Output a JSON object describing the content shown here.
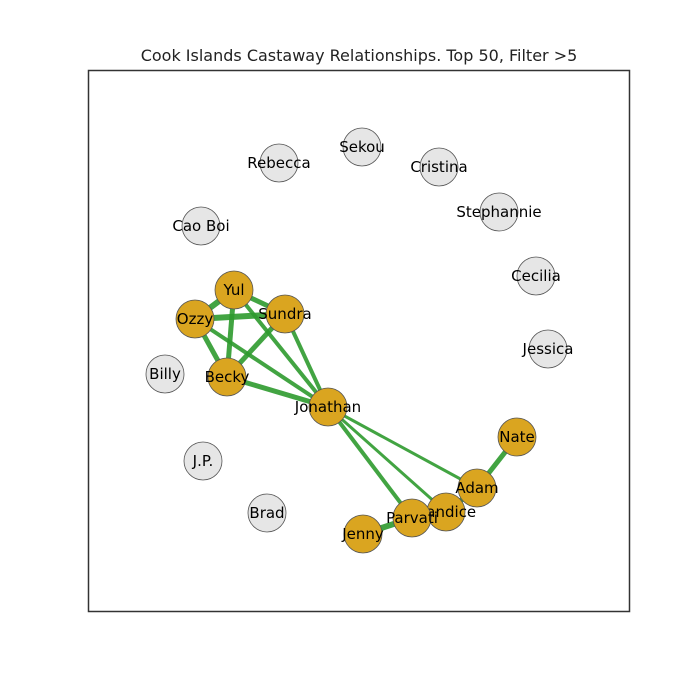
{
  "title": "Cook Islands Castaway Relationships. Top 50, Filter >5",
  "colors": {
    "connected_fill": "#daa520",
    "isolated_fill": "#e6e6e6",
    "edge": "#2e9a2e",
    "frame": "#333333"
  },
  "nodes": [
    {
      "id": "sekou",
      "label": "Sekou",
      "connected": false
    },
    {
      "id": "rebecca",
      "label": "Rebecca",
      "connected": false
    },
    {
      "id": "cristina",
      "label": "Cristina",
      "connected": false
    },
    {
      "id": "stephannie",
      "label": "Stephannie",
      "connected": false
    },
    {
      "id": "cao-boi",
      "label": "Cao Boi",
      "connected": false
    },
    {
      "id": "cecilia",
      "label": "Cecilia",
      "connected": false
    },
    {
      "id": "jessica",
      "label": "Jessica",
      "connected": false
    },
    {
      "id": "billy",
      "label": "Billy",
      "connected": false
    },
    {
      "id": "jp",
      "label": "J.P.",
      "connected": false
    },
    {
      "id": "brad",
      "label": "Brad",
      "connected": false
    },
    {
      "id": "yul",
      "label": "Yul",
      "connected": true
    },
    {
      "id": "ozzy",
      "label": "Ozzy",
      "connected": true
    },
    {
      "id": "sundra",
      "label": "Sundra",
      "connected": true
    },
    {
      "id": "becky",
      "label": "Becky",
      "connected": true
    },
    {
      "id": "jonathan",
      "label": "Jonathan",
      "connected": true
    },
    {
      "id": "nate",
      "label": "Nate",
      "connected": true
    },
    {
      "id": "adam",
      "label": "Adam",
      "connected": true
    },
    {
      "id": "candice",
      "label": "Candice",
      "connected": true
    },
    {
      "id": "parvati",
      "label": "Parvati",
      "connected": true
    },
    {
      "id": "jenny",
      "label": "Jenny",
      "connected": true
    }
  ],
  "edges": [
    {
      "source": "yul",
      "target": "ozzy",
      "weight": 6
    },
    {
      "source": "yul",
      "target": "sundra",
      "weight": 5
    },
    {
      "source": "yul",
      "target": "becky",
      "weight": 5
    },
    {
      "source": "yul",
      "target": "jonathan",
      "weight": 4
    },
    {
      "source": "ozzy",
      "target": "sundra",
      "weight": 6
    },
    {
      "source": "ozzy",
      "target": "becky",
      "weight": 5
    },
    {
      "source": "ozzy",
      "target": "jonathan",
      "weight": 4
    },
    {
      "source": "sundra",
      "target": "becky",
      "weight": 5
    },
    {
      "source": "sundra",
      "target": "jonathan",
      "weight": 4
    },
    {
      "source": "becky",
      "target": "jonathan",
      "weight": 5
    },
    {
      "source": "jonathan",
      "target": "adam",
      "weight": 3
    },
    {
      "source": "jonathan",
      "target": "candice",
      "weight": 3
    },
    {
      "source": "jonathan",
      "target": "parvati",
      "weight": 4
    },
    {
      "source": "nate",
      "target": "adam",
      "weight": 5
    },
    {
      "source": "adam",
      "target": "candice",
      "weight": 5
    },
    {
      "source": "candice",
      "target": "parvati",
      "weight": 5
    },
    {
      "source": "parvati",
      "target": "jenny",
      "weight": 6
    }
  ]
}
